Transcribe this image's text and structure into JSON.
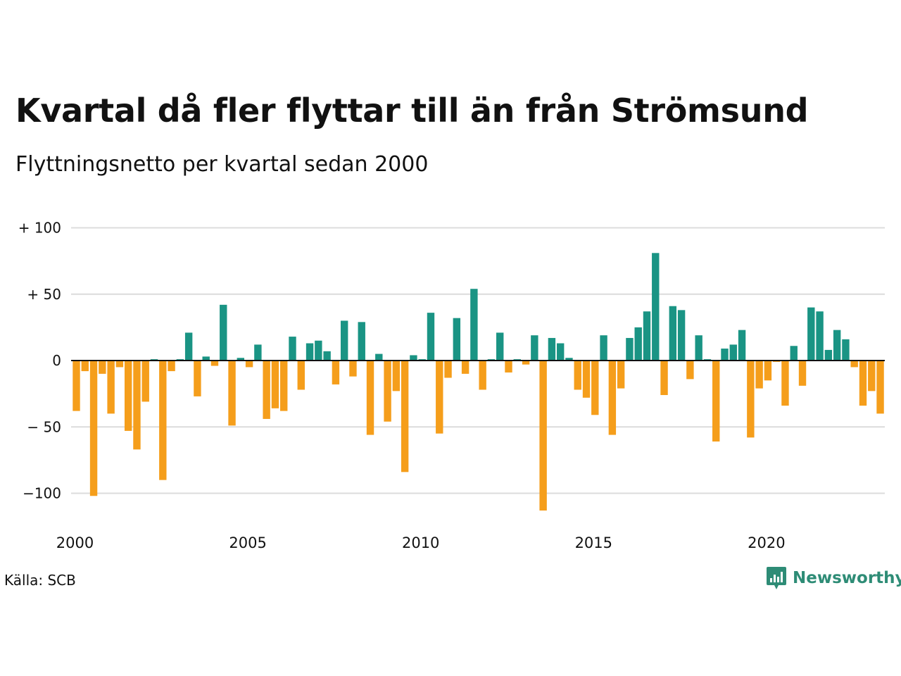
{
  "header": {
    "title": "Kvartal då fler flyttar till än från Strömsund",
    "subtitle": "Flyttningsnetto per kvartal sedan 2000"
  },
  "footer": {
    "source": "Källa: SCB",
    "brand": "Newsworthy"
  },
  "colors": {
    "positive": "#1a9484",
    "negative": "#f59e1b",
    "grid": "#dcdcdc",
    "baseline": "#111111",
    "brand": "#2e8c76"
  },
  "chart_data": {
    "type": "bar",
    "ylim": [
      -115,
      100
    ],
    "yticks": [
      100,
      50,
      0,
      -50,
      -100
    ],
    "ytick_labels": [
      "+ 100",
      "+  50",
      "0",
      "− 50",
      "−100"
    ],
    "xticks": [
      {
        "label": "2000",
        "index": 0
      },
      {
        "label": "2005",
        "index": 20
      },
      {
        "label": "2010",
        "index": 40
      },
      {
        "label": "2015",
        "index": 60
      },
      {
        "label": "2020",
        "index": 80
      }
    ],
    "grid": true,
    "series": [
      {
        "values": [
          -38,
          -8,
          -102,
          -10,
          -40,
          -5,
          -53,
          -67,
          -31,
          1,
          -90,
          -8,
          1,
          21,
          -27,
          3,
          -4,
          42,
          -49,
          2,
          -5,
          12,
          -44,
          -36,
          -38,
          18,
          -22,
          13,
          15,
          7,
          -18,
          30,
          -12,
          29,
          -56,
          5,
          -46,
          -23,
          -84,
          4,
          1,
          36,
          -55,
          -13,
          32,
          -10,
          54,
          -22,
          1,
          21,
          -9,
          1,
          -3,
          19,
          -113,
          17,
          13,
          2,
          -22,
          -28,
          -41,
          19,
          -56,
          -21,
          17,
          25,
          37,
          81,
          -26,
          41,
          38,
          -14,
          19,
          1,
          -61,
          9,
          12,
          23,
          -58,
          -21,
          -15,
          -1,
          -34,
          11,
          -19,
          40,
          37,
          8,
          23,
          16,
          -5,
          -34,
          -23,
          -40
        ]
      }
    ]
  }
}
